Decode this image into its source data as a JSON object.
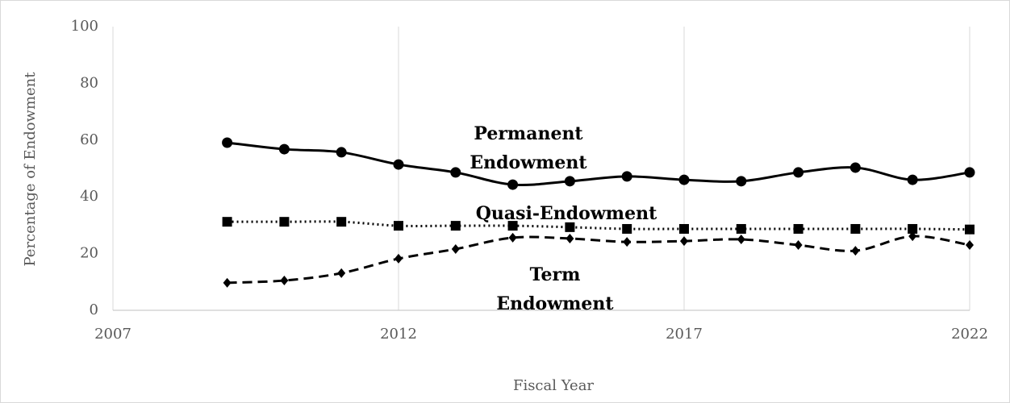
{
  "chart_data": {
    "type": "line",
    "x_label": "Fiscal Year",
    "y_label": "Percentage of Endowment",
    "x": [
      2009,
      2010,
      2011,
      2012,
      2013,
      2014,
      2015,
      2016,
      2017,
      2018,
      2019,
      2020,
      2021,
      2022
    ],
    "series": [
      {
        "name": "Permanent Endowment",
        "color": "#000000",
        "dash": "solid",
        "marker": "circle",
        "values": [
          59.1,
          56.8,
          55.7,
          51.4,
          48.6,
          44.3,
          45.5,
          47.2,
          46.0,
          45.5,
          48.6,
          50.3,
          46.0,
          48.6
        ]
      },
      {
        "name": "Quasi-Endowment",
        "color": "#000000",
        "dash": "dotted",
        "marker": "square",
        "values": [
          31.2,
          31.2,
          31.2,
          29.8,
          29.8,
          29.8,
          29.3,
          28.7,
          28.7,
          28.7,
          28.7,
          28.7,
          28.7,
          28.5
        ]
      },
      {
        "name": "Term Endowment",
        "color": "#000000",
        "dash": "dashed",
        "marker": "diamond",
        "values": [
          9.7,
          10.5,
          13.1,
          18.2,
          21.6,
          25.6,
          25.3,
          24.1,
          24.4,
          25.0,
          23.0,
          21.0,
          26.1,
          23.0
        ]
      }
    ],
    "annotations": [
      {
        "lines": [
          "Permanent",
          "Endowment"
        ]
      },
      {
        "lines": [
          "Quasi-Endowment"
        ]
      },
      {
        "lines": [
          "Term",
          "Endowment"
        ]
      }
    ],
    "xlim": [
      2007,
      2022
    ],
    "xticks": [
      2007,
      2012,
      2017,
      2022
    ],
    "ylim": [
      0,
      100
    ],
    "yticks": [
      0,
      20,
      40,
      60,
      80,
      100
    ],
    "grid": "x"
  }
}
